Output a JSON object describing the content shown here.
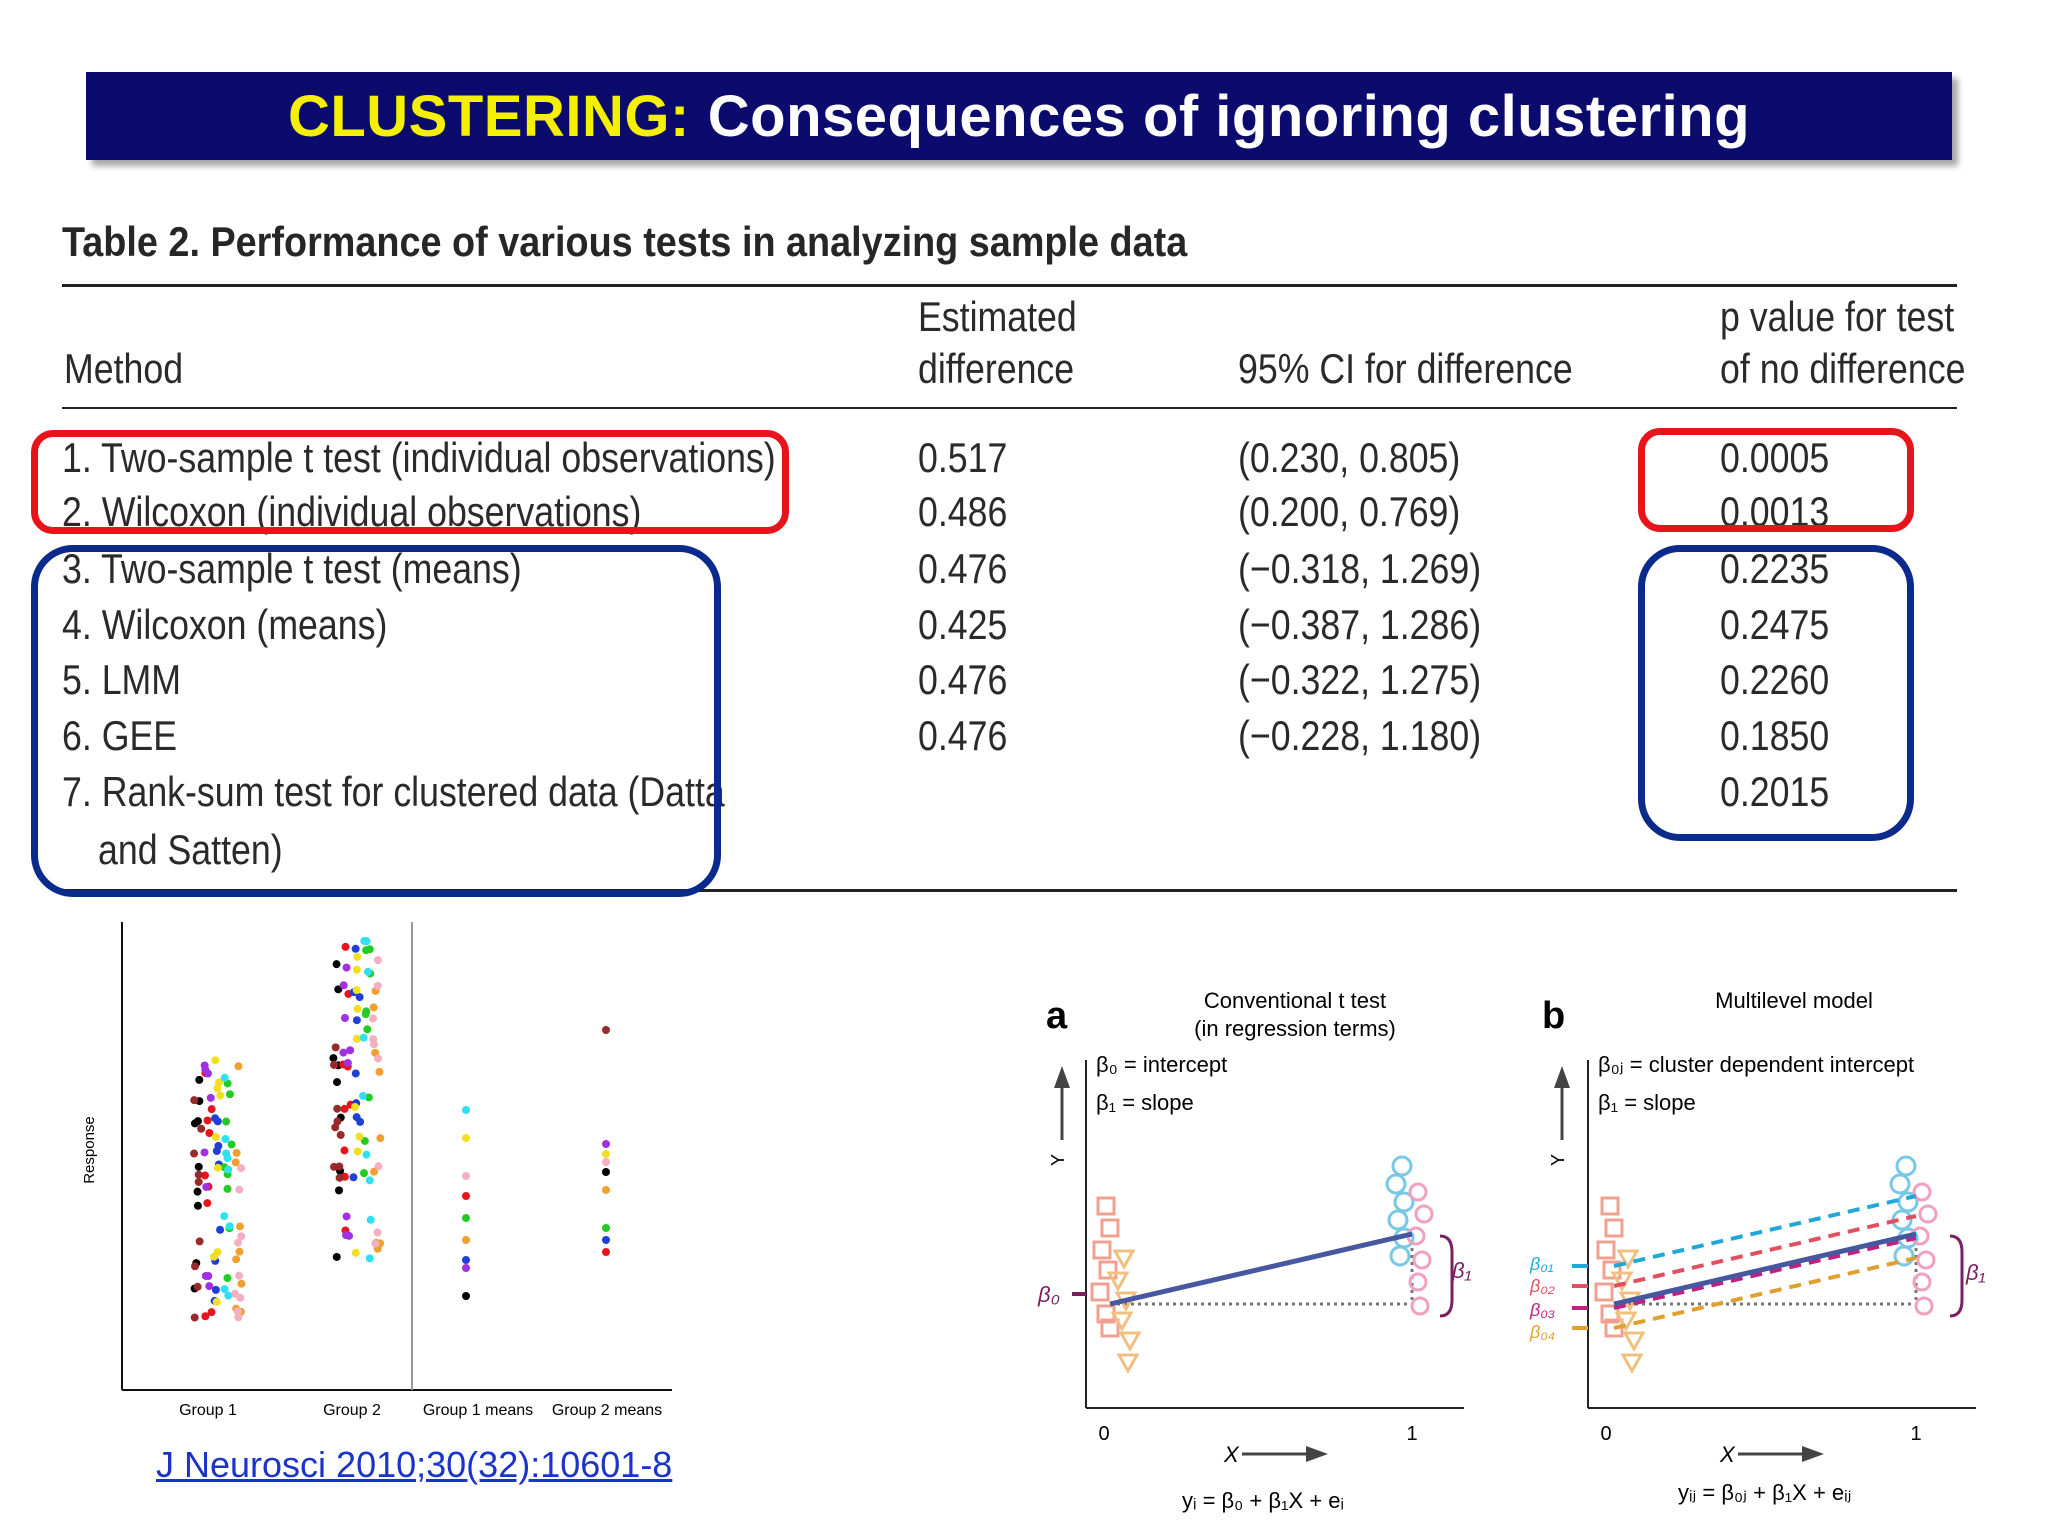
{
  "banner": {
    "highlight": "CLUSTERING:",
    "rest": "Consequences of ignoring clustering"
  },
  "table": {
    "title": "Table 2. Performance of various tests in analyzing sample data",
    "headers": {
      "method": "Method",
      "estimate_1": "Estimated",
      "estimate_2": "difference",
      "ci": "95% CI for difference",
      "p_1": "p value for test",
      "p_2": "of no difference"
    },
    "rows": [
      {
        "method": "1. Two-sample t test (individual observations)",
        "estimate": "0.517",
        "ci": "(0.230, 0.805)",
        "p": "0.0005"
      },
      {
        "method": "2. Wilcoxon (individual observations)",
        "estimate": "0.486",
        "ci": "(0.200, 0.769)",
        "p": "0.0013"
      },
      {
        "method": "3. Two-sample t test (means)",
        "estimate": "0.476",
        "ci": "(−0.318, 1.269)",
        "p": "0.2235"
      },
      {
        "method": "4. Wilcoxon (means)",
        "estimate": "0.425",
        "ci": "(−0.387, 1.286)",
        "p": "0.2475"
      },
      {
        "method": "5. LMM",
        "estimate": "0.476",
        "ci": "(−0.322, 1.275)",
        "p": "0.2260"
      },
      {
        "method": "6. GEE",
        "estimate": "0.476",
        "ci": "(−0.228, 1.180)",
        "p": "0.1850"
      },
      {
        "method": "7. Rank-sum test for clustered data (Datta",
        "method_cont": "and Satten)",
        "estimate": "",
        "ci": "",
        "p": "0.2015"
      }
    ],
    "highlight_colors": {
      "red": "#e8141c",
      "blue": "#0a2a8c"
    }
  },
  "scatter": {
    "ylabel": "Response",
    "categories": [
      "Group 1",
      "Group 2",
      "Group 1 means",
      "Group 2 means"
    ]
  },
  "figure": {
    "panel_a": {
      "letter": "a",
      "title_1": "Conventional t test",
      "title_2": "(in regression terms)",
      "legend_1": "β₀ = intercept",
      "legend_2": "β₁ = slope",
      "y_label": "Y",
      "x_label": "X",
      "x_tick_0": "0",
      "x_tick_1": "1",
      "beta0": "β₀",
      "beta1": "β₁",
      "equation": "yᵢ = β₀ + β₁X + eᵢ"
    },
    "panel_b": {
      "letter": "b",
      "title": "Multilevel model",
      "legend_1": "β₀ⱼ = cluster dependent intercept",
      "legend_2": "β₁ = slope",
      "y_label": "Y",
      "x_label": "X",
      "x_tick_0": "0",
      "x_tick_1": "1",
      "b01": "β₀₁",
      "b02": "β₀₂",
      "b03": "β₀₃",
      "b04": "β₀₄",
      "beta1": "β₁",
      "equation": "yᵢⱼ = β₀ⱼ + β₁X + eᵢⱼ"
    }
  },
  "citation": "J Neurosci 2010;30(32):10601-8"
}
